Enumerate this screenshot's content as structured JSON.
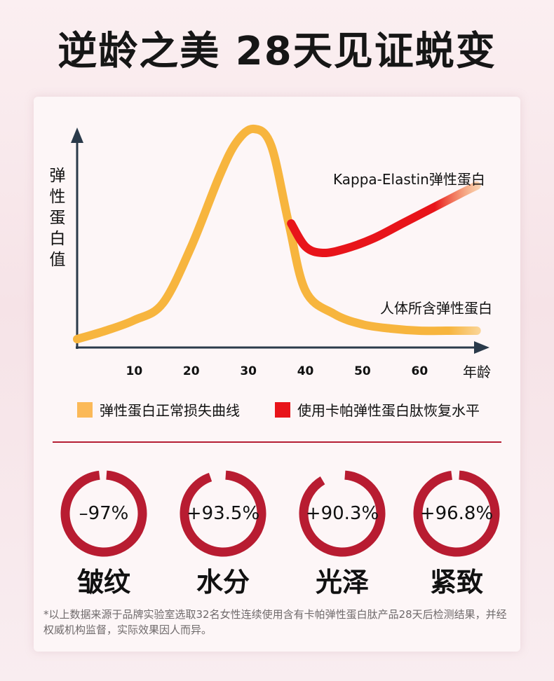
{
  "title": "逆龄之美 28天见证蜕变",
  "chart_data": {
    "type": "line",
    "xlabel": "年龄",
    "ylabel": "弹性蛋白值",
    "xticks": [
      10,
      20,
      30,
      40,
      50,
      60
    ],
    "xlim": [
      0,
      72
    ],
    "ylim": [
      0,
      100
    ],
    "series": [
      {
        "name": "人体所含弹性蛋白",
        "legend": "弹性蛋白正常损失曲线",
        "color": "#f7b53e",
        "x": [
          0,
          5,
          10,
          15,
          20,
          25,
          28,
          31,
          34,
          37,
          40,
          45,
          50,
          55,
          60,
          65,
          70
        ],
        "y": [
          2,
          6,
          11,
          19,
          46,
          80,
          96,
          102,
          94,
          58,
          25,
          14,
          9,
          7,
          6,
          6,
          6
        ]
      },
      {
        "name": "Kappa-Elastin弹性蛋白",
        "legend": "使用卡帕弹性蛋白肽恢复水平",
        "color": "#e8141a",
        "x": [
          37.5,
          40,
          43,
          47,
          52,
          57,
          62,
          67,
          70
        ],
        "y": [
          57,
          46,
          43,
          45,
          50,
          57,
          64,
          71,
          75
        ]
      }
    ]
  },
  "stats": [
    {
      "value": "–97%",
      "label": "皱纹",
      "fraction": 0.97
    },
    {
      "value": "+93.5%",
      "label": "水分",
      "fraction": 0.935
    },
    {
      "value": "+90.3%",
      "label": "光泽",
      "fraction": 0.903
    },
    {
      "value": "+96.8%",
      "label": "紧致",
      "fraction": 0.968
    }
  ],
  "ring_color": "#b81c31",
  "footnote": "*以上数据来源于品牌实验室选取32名女性连续使用含有卡帕弹性蛋白肽产品28天后检测结果，并经权威机构监督，实际效果因人而异。"
}
